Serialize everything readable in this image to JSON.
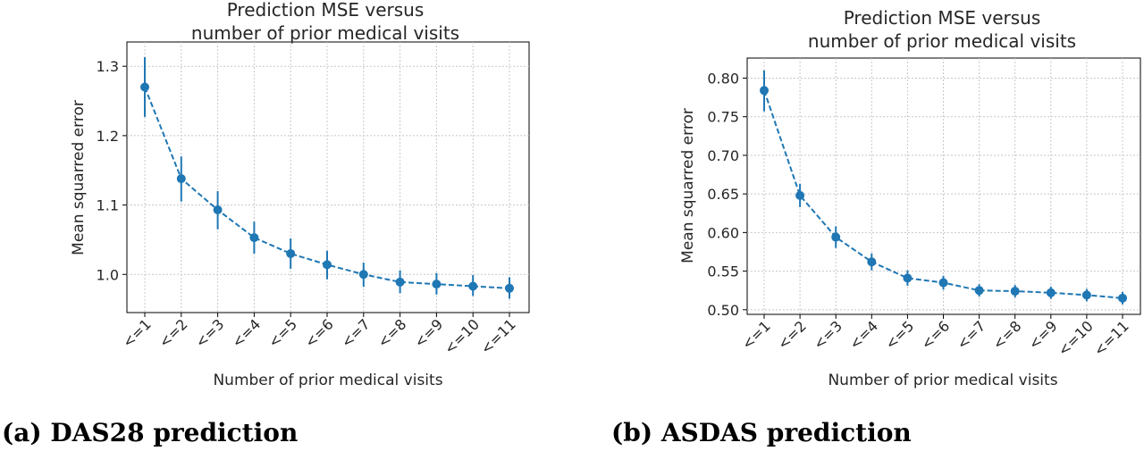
{
  "chart_data": [
    {
      "type": "line",
      "title_line1": "Prediction MSE versus",
      "title_line2": "number of prior medical visits",
      "xlabel": "Number of prior medical visits",
      "ylabel": "Mean squarred error",
      "caption": "(a) DAS28 prediction",
      "categories": [
        "<=1",
        "<=2",
        "<=3",
        "<=4",
        "<=5",
        "<=6",
        "<=7",
        "<=8",
        "<=9",
        "<=10",
        "<=11"
      ],
      "yticks": [
        1.0,
        1.1,
        1.2,
        1.3
      ],
      "ytick_labels": [
        "1.0",
        "1.1",
        "1.2",
        "1.3"
      ],
      "ylim": [
        0.945,
        1.335
      ],
      "grid": true,
      "color": "#1f77b4",
      "linestyle": "dashed",
      "series": [
        {
          "values": [
            1.27,
            1.138,
            1.093,
            1.053,
            1.03,
            1.014,
            1.0,
            0.989,
            0.986,
            0.983,
            0.98
          ],
          "err_low": [
            1.227,
            1.105,
            1.065,
            1.03,
            1.008,
            0.993,
            0.982,
            0.973,
            0.971,
            0.969,
            0.965
          ],
          "err_high": [
            1.313,
            1.17,
            1.12,
            1.076,
            1.052,
            1.034,
            1.017,
            1.006,
            1.002,
            0.999,
            0.996
          ]
        }
      ]
    },
    {
      "type": "line",
      "title_line1": "Prediction MSE versus",
      "title_line2": "number of prior medical visits",
      "xlabel": "Number of prior medical visits",
      "ylabel": "Mean squarred error",
      "caption": "(b) ASDAS prediction",
      "categories": [
        "<=1",
        "<=2",
        "<=3",
        "<=4",
        "<=5",
        "<=6",
        "<=7",
        "<=8",
        "<=9",
        "<=10",
        "<=11"
      ],
      "yticks": [
        0.5,
        0.55,
        0.6,
        0.65,
        0.7,
        0.75,
        0.8
      ],
      "ytick_labels": [
        "0.50",
        "0.55",
        "0.60",
        "0.65",
        "0.70",
        "0.75",
        "0.80"
      ],
      "ylim": [
        0.494,
        0.826
      ],
      "grid": true,
      "color": "#1f77b4",
      "linestyle": "dashed",
      "series": [
        {
          "values": [
            0.784,
            0.648,
            0.594,
            0.562,
            0.541,
            0.535,
            0.525,
            0.524,
            0.522,
            0.519,
            0.515
          ],
          "err_low": [
            0.757,
            0.633,
            0.58,
            0.551,
            0.531,
            0.526,
            0.517,
            0.516,
            0.514,
            0.511,
            0.507
          ],
          "err_high": [
            0.81,
            0.663,
            0.608,
            0.573,
            0.551,
            0.544,
            0.533,
            0.532,
            0.53,
            0.527,
            0.523
          ]
        }
      ]
    }
  ]
}
